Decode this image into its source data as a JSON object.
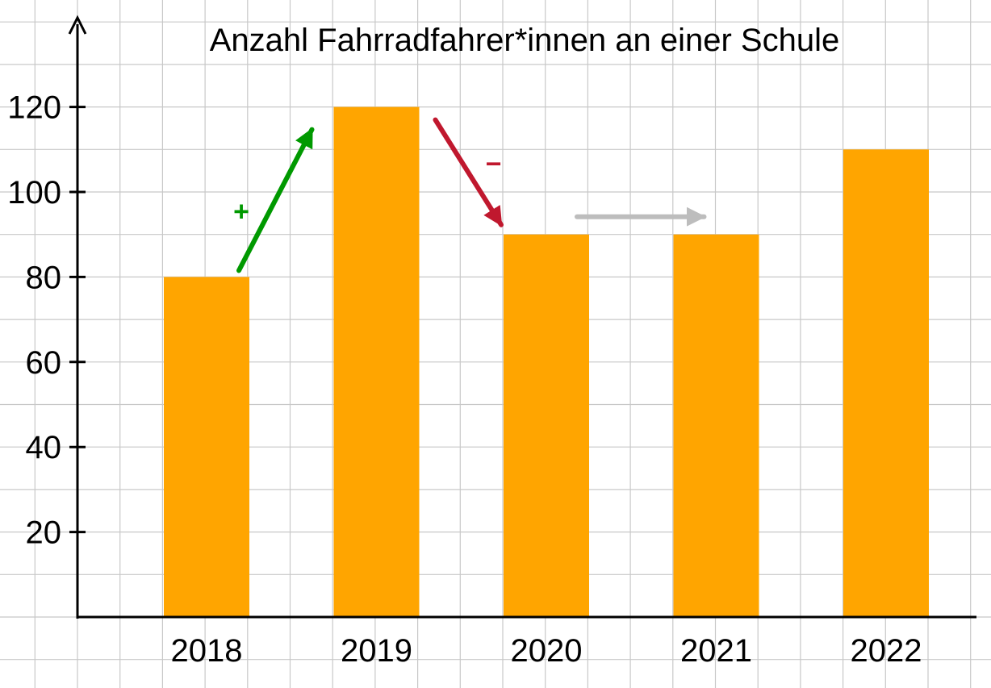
{
  "chart_data": {
    "type": "bar",
    "title": "Anzahl Fahrradfahrer*innen an einer Schule",
    "xlabel": "",
    "ylabel": "",
    "categories": [
      "2018",
      "2019",
      "2020",
      "2021",
      "2022"
    ],
    "values": [
      80,
      120,
      90,
      90,
      110
    ],
    "ylim": [
      0,
      130
    ],
    "yticks": [
      20,
      40,
      60,
      80,
      100,
      120
    ],
    "grid": true,
    "legend": "none",
    "annotations": [
      {
        "label": "+",
        "from": "2018",
        "to": "2019",
        "color": "#009900"
      },
      {
        "label": "−",
        "from": "2019",
        "to": "2020",
        "color": "#C0182E"
      },
      {
        "label": "",
        "from": "2020",
        "to": "2021",
        "color": "#BDBDBD"
      }
    ]
  },
  "colors": {
    "bar": "#FFA500",
    "grid": "#C8C8C8",
    "axis": "#000000"
  }
}
